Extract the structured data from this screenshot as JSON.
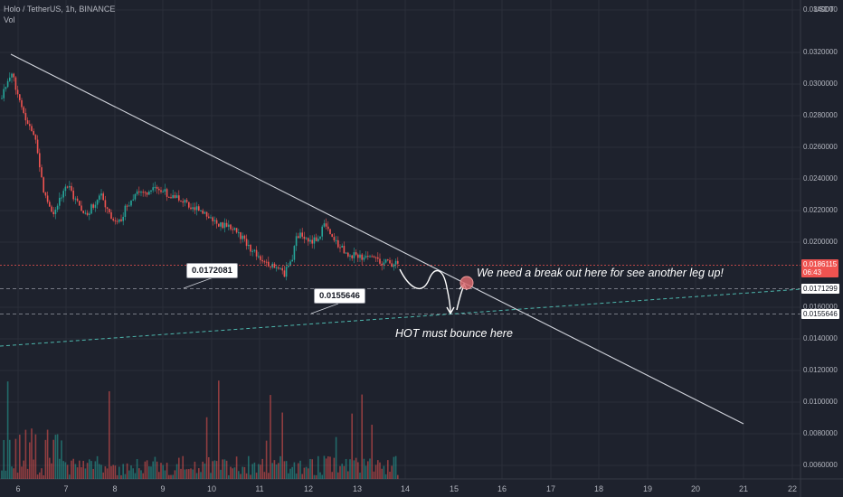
{
  "header": {
    "ticker": "Holo / TetherUS, 1h, BINANCE",
    "volume_label": "Vol",
    "currency": "USDT"
  },
  "price_axis": {
    "ticks": [
      "0.0340000",
      "0.0320000",
      "0.0300000",
      "0.0280000",
      "0.0260000",
      "0.0240000",
      "0.0220000",
      "0.0200000",
      "0.0160000",
      "0.0140000",
      "0.0120000",
      "0.0100000",
      "0.0080000",
      "0.0060000"
    ],
    "current_price": "0.0186115",
    "countdown": "06:43",
    "level_1_tag": "0.0171299",
    "level_2_tag": "0.0155646"
  },
  "time_axis": {
    "ticks": [
      "6",
      "7",
      "8",
      "9",
      "10",
      "11",
      "12",
      "13",
      "14",
      "15",
      "16",
      "17",
      "18",
      "19",
      "20",
      "21",
      "22"
    ]
  },
  "drawings": {
    "label_1": "0.0172081",
    "label_2": "0.0155646",
    "annotation_breakout": "We need a break out here for see another leg up!",
    "annotation_bounce": "HOT must bounce here"
  },
  "colors": {
    "background": "#1e222d",
    "up": "#26a69a",
    "down": "#ef5350",
    "trendline": "#d1d4dc",
    "support_line": "#4db6ac"
  }
}
